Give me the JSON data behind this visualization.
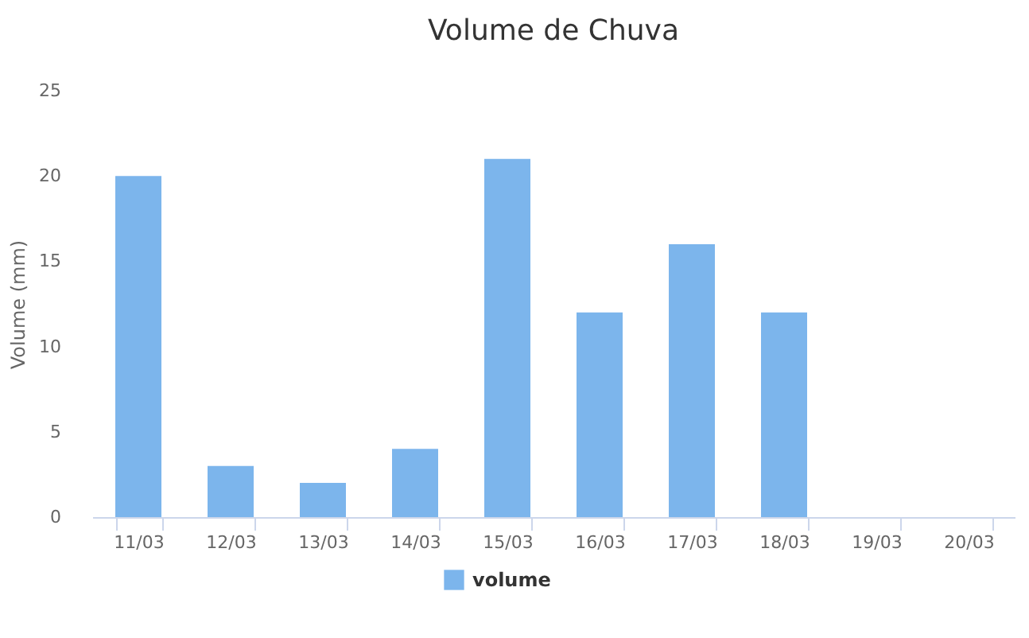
{
  "chart_data": {
    "type": "bar",
    "title": "Volume de Chuva",
    "ylabel": "Volume (mm)",
    "categories": [
      "11/03",
      "12/03",
      "13/03",
      "14/03",
      "15/03",
      "16/03",
      "17/03",
      "18/03",
      "19/03",
      "20/03"
    ],
    "series": [
      {
        "name": "volume",
        "color": "#7cb5ec",
        "values": [
          20,
          3,
          2,
          4,
          21,
          12,
          16,
          12,
          null,
          null
        ]
      }
    ],
    "ylim": [
      0,
      25
    ],
    "yticks": [
      0,
      5,
      10,
      15,
      20,
      25
    ],
    "grid": false,
    "legend": "bottom"
  }
}
